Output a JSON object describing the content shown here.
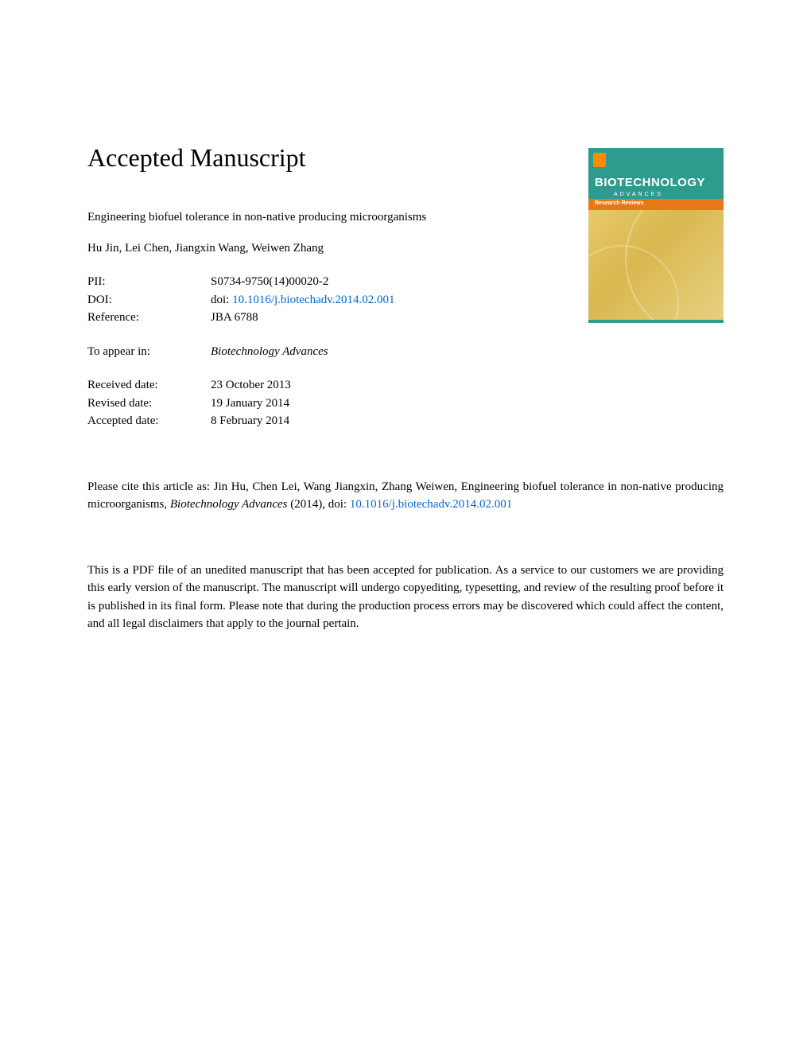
{
  "heading": "Accepted Manuscript",
  "article_title": "Engineering biofuel tolerance in non-native producing microorganisms",
  "authors": "Hu Jin, Lei Chen, Jiangxin Wang, Weiwen Zhang",
  "meta": {
    "pii_label": "PII:",
    "pii_value": "S0734-9750(14)00020-2",
    "doi_label": "DOI:",
    "doi_prefix": "doi: ",
    "doi_link": "10.1016/j.biotechadv.2014.02.001",
    "reference_label": "Reference:",
    "reference_value": "JBA 6788",
    "appear_label": "To appear in:",
    "appear_value": "Biotechnology Advances",
    "received_label": "Received date:",
    "received_value": "23 October 2013",
    "revised_label": "Revised date:",
    "revised_value": "19 January 2014",
    "accepted_label": "Accepted date:",
    "accepted_value": "8 February 2014"
  },
  "citation": {
    "prefix": "Please cite this article as: Jin Hu, Chen Lei, Wang Jiangxin, Zhang Weiwen, Engineering biofuel tolerance in non-native producing microorganisms, ",
    "journal": "Biotechnology Advances",
    "year": " (2014), doi: ",
    "doi_link": "10.1016/j.biotechadv.2014.02.001"
  },
  "disclaimer": "This is a PDF file of an unedited manuscript that has been accepted for publication. As a service to our customers we are providing this early version of the manuscript. The manuscript will undergo copyediting, typesetting, and review of the resulting proof before it is published in its final form. Please note that during the production process errors may be discovered which could affect the content, and all legal disclaimers that apply to the journal pertain.",
  "cover": {
    "title": "BIOTECHNOLOGY",
    "subtitle": "ADVANCES",
    "band": "Research Reviews",
    "top_color": "#2e9b8f",
    "band_color": "#e67817",
    "body_color": "#e8c96a",
    "logo_color": "#ff8c00"
  },
  "colors": {
    "link": "#0066cc",
    "text": "#000000",
    "background": "#ffffff"
  }
}
